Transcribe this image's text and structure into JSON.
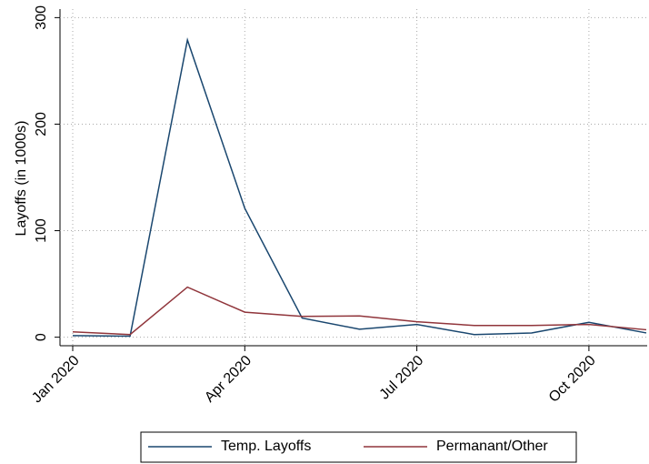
{
  "chart_data": {
    "type": "line",
    "y_label": "Layoffs (in 1000s)",
    "x": [
      "2020-01",
      "2020-02",
      "2020-03",
      "2020-04",
      "2020-05",
      "2020-06",
      "2020-07",
      "2020-08",
      "2020-09",
      "2020-10",
      "2020-11"
    ],
    "series": [
      {
        "name": "Temp. Layoffs",
        "color": "#1a476f",
        "values": [
          1.5,
          1,
          279,
          121,
          18,
          7.5,
          12,
          2.5,
          4,
          14,
          4
        ]
      },
      {
        "name": "Permanant/Other",
        "color": "#90353b",
        "values": [
          5,
          2.5,
          47,
          23.5,
          19.5,
          20,
          14.5,
          11,
          11,
          12,
          7
        ]
      }
    ],
    "xlim": [
      "2020-01",
      "2020-11"
    ],
    "xticks": [
      {
        "value": "2020-01",
        "label": "Jan 2020"
      },
      {
        "value": "2020-04",
        "label": "Apr 2020"
      },
      {
        "value": "2020-07",
        "label": "Jul 2020"
      },
      {
        "value": "2020-10",
        "label": "Oct 2020"
      }
    ],
    "ylim": [
      -8,
      308
    ],
    "yticks": [
      0,
      100,
      200,
      300
    ],
    "grid": true,
    "legend": "bottom"
  }
}
